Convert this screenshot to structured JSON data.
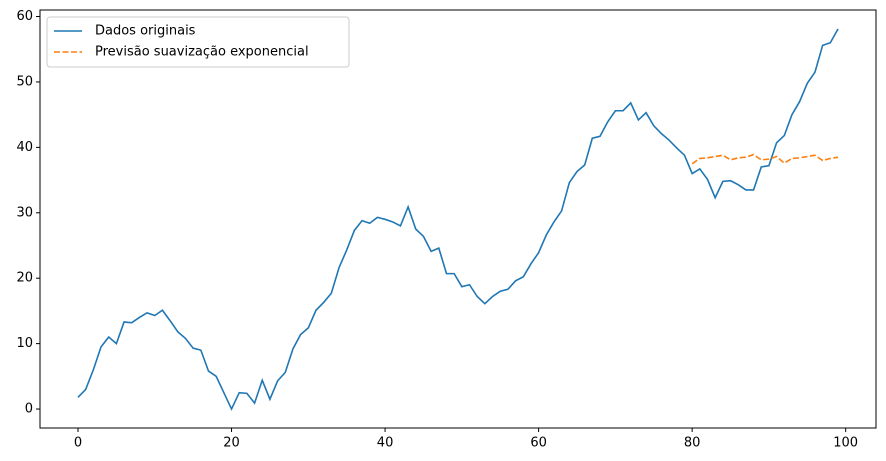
{
  "chart_data": {
    "type": "line",
    "xlim": [
      -4.95,
      103.95
    ],
    "ylim": [
      -2.9,
      61.0
    ],
    "xticks": [
      0,
      20,
      40,
      60,
      80,
      100
    ],
    "yticks": [
      0,
      10,
      20,
      30,
      40,
      50,
      60
    ],
    "legend": "upper left",
    "series": [
      {
        "name": "Dados originais",
        "color": "#1f77b4",
        "dash": "solid",
        "x": [
          0,
          1,
          2,
          3,
          4,
          5,
          6,
          7,
          8,
          9,
          10,
          11,
          12,
          13,
          14,
          15,
          16,
          17,
          18,
          19,
          20,
          21,
          22,
          23,
          24,
          25,
          26,
          27,
          28,
          29,
          30,
          31,
          32,
          33,
          34,
          35,
          36,
          37,
          38,
          39,
          40,
          41,
          42,
          43,
          44,
          45,
          46,
          47,
          48,
          49,
          50,
          51,
          52,
          53,
          54,
          55,
          56,
          57,
          58,
          59,
          60,
          61,
          62,
          63,
          64,
          65,
          66,
          67,
          68,
          69,
          70,
          71,
          72,
          73,
          74,
          75,
          76,
          77,
          78,
          79,
          80,
          81,
          82,
          83,
          84,
          85,
          86,
          87,
          88,
          89,
          90,
          91,
          92,
          93,
          94,
          95,
          96,
          97,
          98,
          99
        ],
        "values": [
          1.8,
          3,
          6,
          9.5,
          11,
          10,
          13.3,
          13.2,
          14,
          14.7,
          14.3,
          15.1,
          13.5,
          11.8,
          10.8,
          9.3,
          9,
          5.8,
          5,
          2.5,
          0,
          2.5,
          2.4,
          0.9,
          4.4,
          1.5,
          4.3,
          5.6,
          9.2,
          11.4,
          12.4,
          15.1,
          16.3,
          17.7,
          21.6,
          24.3,
          27.3,
          28.8,
          28.4,
          29.3,
          29,
          28.6,
          28,
          30.9,
          27.5,
          26.4,
          24.1,
          24.6,
          20.7,
          20.7,
          18.7,
          19,
          17.2,
          16.1,
          17.2,
          18,
          18.3,
          19.6,
          20.2,
          22.2,
          23.9,
          26.6,
          28.6,
          30.3,
          34.6,
          36.3,
          37.3,
          41.4,
          41.7,
          43.9,
          45.6,
          45.6,
          46.8,
          44.2,
          45.3,
          43.3,
          42.1,
          41.1,
          39.9,
          38.8,
          36,
          36.7,
          35.1,
          32.3,
          34.8,
          34.9,
          34.3,
          33.5,
          33.5,
          37,
          37.2,
          40.7,
          41.8,
          45,
          47,
          49.8,
          51.5,
          55.6,
          56,
          58.1
        ]
      },
      {
        "name": "Previsão suavização exponencial",
        "color": "#ff7f0e",
        "dash": "dashed",
        "x": [
          80,
          81,
          82,
          83,
          84,
          85,
          86,
          87,
          88,
          89,
          90,
          91,
          92,
          93,
          94,
          95,
          96,
          97,
          98,
          99
        ],
        "values": [
          37.5,
          38.3,
          38.4,
          38.6,
          38.8,
          38.1,
          38.4,
          38.5,
          38.9,
          38.1,
          38.2,
          38.6,
          37.6,
          38.3,
          38.4,
          38.6,
          38.8,
          38.0,
          38.3,
          38.5
        ]
      }
    ]
  }
}
